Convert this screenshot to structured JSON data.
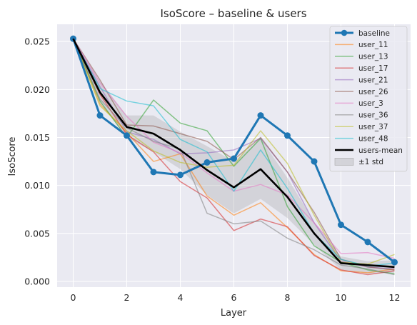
{
  "chart_data": {
    "type": "line",
    "title": "IsoScore – baseline & users",
    "xlabel": "Layer",
    "ylabel": "IsoScore",
    "xlim": [
      -0.6,
      12.6
    ],
    "ylim": [
      -0.0006,
      0.0268
    ],
    "x_ticks": [
      0,
      2,
      4,
      6,
      8,
      10,
      12
    ],
    "y_ticks": [
      0.0,
      0.005,
      0.01,
      0.015,
      0.02,
      0.025
    ],
    "x_tick_labels": [
      "0",
      "2",
      "4",
      "6",
      "8",
      "10",
      "12"
    ],
    "y_tick_labels": [
      "0.000",
      "0.005",
      "0.010",
      "0.015",
      "0.020",
      "0.025"
    ],
    "grid": true,
    "legend_position": "top-right",
    "x": [
      0,
      1,
      2,
      3,
      4,
      5,
      6,
      7,
      8,
      9,
      10,
      11,
      12
    ],
    "band": {
      "name": "±1 std",
      "color": "#9e9e9e",
      "lower": [
        0.0252,
        0.0186,
        0.015,
        0.0135,
        0.0117,
        0.009,
        0.0071,
        0.0086,
        0.0066,
        0.0038,
        0.0012,
        0.0008,
        0.0009
      ],
      "upper": [
        0.0252,
        0.0209,
        0.0173,
        0.0173,
        0.0156,
        0.0141,
        0.0125,
        0.0149,
        0.0108,
        0.0062,
        0.0026,
        0.0021,
        0.0022
      ]
    },
    "series": [
      {
        "name": "baseline",
        "color": "#1f77b4",
        "style": "baseline",
        "values": [
          0.0253,
          0.0173,
          0.0152,
          0.0114,
          0.0111,
          0.0124,
          0.0128,
          0.0173,
          0.0152,
          0.0125,
          0.0059,
          0.0041,
          0.002
        ]
      },
      {
        "name": "user_11",
        "color": "#ff7f0e",
        "style": "user",
        "values": [
          0.0253,
          0.0185,
          0.0155,
          0.0125,
          0.0133,
          0.0089,
          0.0069,
          0.0082,
          0.0056,
          0.0028,
          0.0011,
          0.0009,
          0.0013
        ]
      },
      {
        "name": "user_13",
        "color": "#2ca02c",
        "style": "user",
        "values": [
          0.0253,
          0.0188,
          0.015,
          0.0189,
          0.0165,
          0.0157,
          0.012,
          0.0149,
          0.0078,
          0.0037,
          0.002,
          0.0012,
          0.0008
        ]
      },
      {
        "name": "user_17",
        "color": "#d62728",
        "style": "user",
        "values": [
          0.0253,
          0.0195,
          0.0153,
          0.0135,
          0.0104,
          0.0087,
          0.0053,
          0.0065,
          0.0057,
          0.0027,
          0.0012,
          0.0007,
          0.0011
        ]
      },
      {
        "name": "user_21",
        "color": "#9467bd",
        "style": "user",
        "values": [
          0.0253,
          0.0203,
          0.0156,
          0.0148,
          0.0133,
          0.0134,
          0.0137,
          0.0149,
          0.0114,
          0.0061,
          0.0021,
          0.0015,
          0.0013
        ]
      },
      {
        "name": "user_26",
        "color": "#8c564b",
        "style": "user",
        "values": [
          0.0253,
          0.021,
          0.0163,
          0.0162,
          0.0154,
          0.0146,
          0.0127,
          0.015,
          0.0114,
          0.0072,
          0.0023,
          0.0015,
          0.0012
        ]
      },
      {
        "name": "user_3",
        "color": "#e377c2",
        "style": "user",
        "values": [
          0.0253,
          0.0207,
          0.0172,
          0.0145,
          0.0134,
          0.0113,
          0.0094,
          0.0101,
          0.009,
          0.0061,
          0.0029,
          0.003,
          0.0024
        ]
      },
      {
        "name": "user_36",
        "color": "#7f7f7f",
        "style": "user",
        "values": [
          0.0253,
          0.019,
          0.016,
          0.0146,
          0.0138,
          0.0071,
          0.006,
          0.0063,
          0.0045,
          0.0033,
          0.0017,
          0.0013,
          0.0007
        ]
      },
      {
        "name": "user_37",
        "color": "#bcbd22",
        "style": "user",
        "values": [
          0.0253,
          0.0183,
          0.0157,
          0.0136,
          0.0124,
          0.0119,
          0.0121,
          0.0157,
          0.0123,
          0.0069,
          0.002,
          0.0018,
          0.0028
        ]
      },
      {
        "name": "user_48",
        "color": "#17becf",
        "style": "user",
        "values": [
          0.0253,
          0.0201,
          0.0188,
          0.0183,
          0.0148,
          0.0135,
          0.0094,
          0.0137,
          0.0097,
          0.005,
          0.0023,
          0.0016,
          0.0019
        ]
      },
      {
        "name": "users-mean",
        "color": "#000000",
        "style": "mean",
        "values": [
          0.0253,
          0.0197,
          0.0161,
          0.0154,
          0.0137,
          0.0116,
          0.0098,
          0.0117,
          0.0088,
          0.005,
          0.0019,
          0.0017,
          0.0015
        ]
      }
    ]
  }
}
